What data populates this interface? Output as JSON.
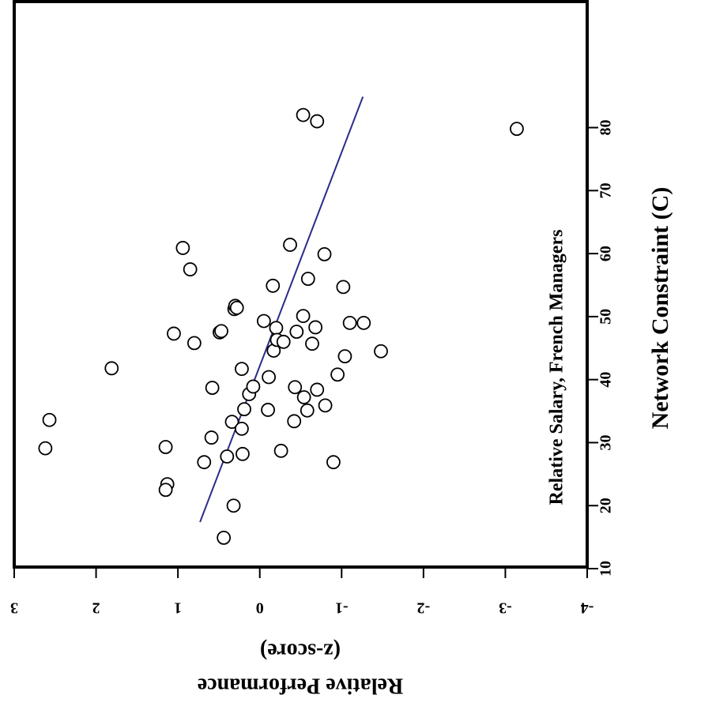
{
  "chart_data": {
    "type": "scatter",
    "annotation": "Relative Salary, French Managers",
    "x_label": "Network Constraint (C)",
    "y_label": [
      "Relative Performance",
      "(z-score)"
    ],
    "x": [
      29.1,
      33.6,
      41.8,
      29.3,
      23.4,
      22.5,
      47.3,
      60.9,
      57.5,
      45.8,
      26.9,
      30.8,
      38.7,
      47.5,
      47.7,
      14.9,
      27.8,
      33.3,
      20.0,
      51.2,
      51.7,
      51.4,
      41.7,
      32.2,
      28.2,
      35.3,
      37.7,
      38.9,
      49.3,
      35.2,
      40.4,
      54.9,
      44.6,
      48.2,
      46.3,
      28.7,
      46.0,
      61.4,
      38.8,
      33.4,
      47.6,
      50.1,
      37.2,
      35.1,
      56.0,
      45.7,
      48.3,
      38.4,
      59.9,
      35.9,
      26.9,
      40.8,
      54.7,
      43.7,
      49.0,
      49.0,
      44.5,
      82.0,
      81.0,
      79.8
    ],
    "y": [
      2.62,
      2.57,
      1.81,
      1.15,
      1.13,
      1.15,
      1.05,
      0.94,
      0.85,
      0.8,
      0.68,
      0.59,
      0.58,
      0.49,
      0.47,
      0.44,
      0.4,
      0.34,
      0.32,
      0.31,
      0.3,
      0.28,
      0.22,
      0.22,
      0.21,
      0.19,
      0.13,
      0.08,
      -0.05,
      -0.1,
      -0.11,
      -0.16,
      -0.17,
      -0.2,
      -0.21,
      -0.26,
      -0.29,
      -0.37,
      -0.43,
      -0.42,
      -0.45,
      -0.53,
      -0.54,
      -0.58,
      -0.59,
      -0.64,
      -0.68,
      -0.7,
      -0.79,
      -0.8,
      -0.9,
      -0.95,
      -1.02,
      -1.04,
      -1.1,
      -1.27,
      -1.48,
      -0.53,
      -0.7,
      -3.14
    ],
    "trend": {
      "x": [
        17.4,
        84.9
      ],
      "y": [
        0.73,
        -1.26
      ],
      "color": "#2b2b8a"
    },
    "marker_color": "#000000",
    "xlim": [
      10,
      100
    ],
    "xticks": [
      10,
      20,
      30,
      40,
      50,
      60,
      70,
      80
    ],
    "ylim": [
      -4,
      3
    ],
    "yticks": [
      3,
      2,
      1,
      0,
      -1,
      -2,
      -3,
      -4
    ]
  }
}
